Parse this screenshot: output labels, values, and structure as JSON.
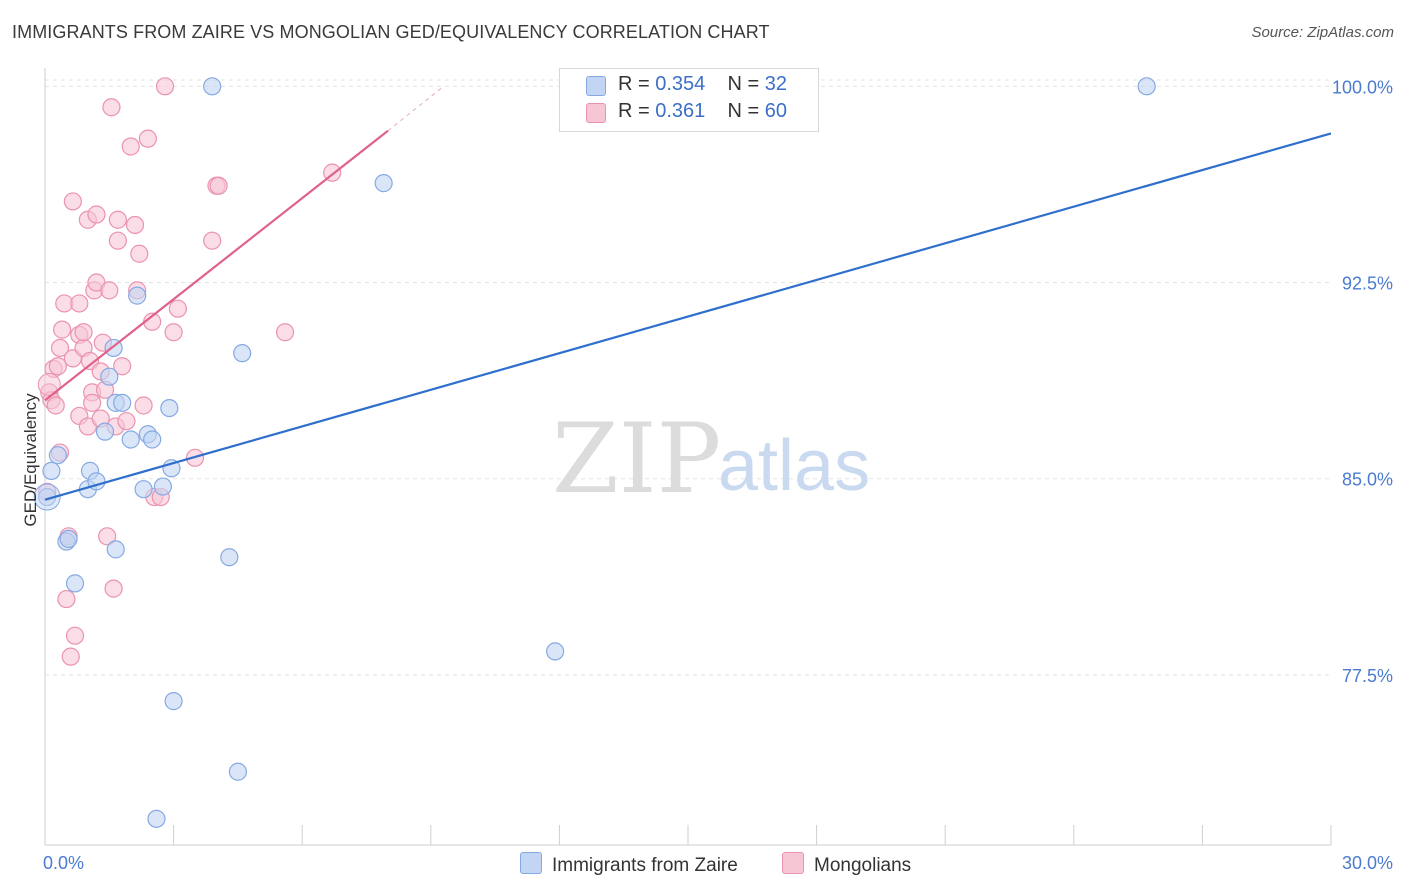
{
  "title": "IMMIGRANTS FROM ZAIRE VS MONGOLIAN GED/EQUIVALENCY CORRELATION CHART",
  "source": "Source: ZipAtlas.com",
  "watermark": {
    "zip": "ZIP",
    "atlas": "atlas"
  },
  "colors": {
    "blue_fill": "#c2d6f4",
    "blue_stroke": "#86a9e3",
    "blue_line": "#2f6fcc",
    "pink_fill": "#f7c6d5",
    "pink_stroke": "#eb93ae",
    "pink_line": "#e0628a",
    "grid": "#e3e3e3",
    "axis_text": "#4a7bd0"
  },
  "legend": {
    "rows": [
      {
        "r_label": "R =",
        "r_value": "0.354",
        "n_label": "N =",
        "n_value": "32"
      },
      {
        "r_label": "R =",
        "r_value": "0.361",
        "n_label": "N =",
        "n_value": "60"
      }
    ]
  },
  "bottom_legend": {
    "series1": "Immigrants from Zaire",
    "series2": "Mongolians"
  },
  "chart_data": {
    "type": "scatter",
    "title": "IMMIGRANTS FROM ZAIRE VS MONGOLIAN GED/EQUIVALENCY CORRELATION CHART",
    "xlabel": "",
    "ylabel": "GED/Equivalency",
    "xlim": [
      0,
      30
    ],
    "ylim": [
      71,
      100.7
    ],
    "x_tick_labels": [
      "0.0%",
      "30.0%"
    ],
    "y_ticks": [
      77.5,
      85.0,
      92.5,
      100.0
    ],
    "y_tick_labels": [
      "77.5%",
      "85.0%",
      "92.5%",
      "100.0%"
    ],
    "grid": true,
    "series": [
      {
        "name": "Immigrants from Zaire",
        "color": "#86a9e3",
        "trend": {
          "x": [
            0,
            30
          ],
          "y": [
            84.2,
            98.2
          ]
        },
        "points": [
          [
            0.05,
            84.3
          ],
          [
            0.15,
            85.3
          ],
          [
            0.3,
            85.9
          ],
          [
            0.5,
            82.6
          ],
          [
            0.55,
            82.7
          ],
          [
            0.7,
            81.0
          ],
          [
            1.0,
            84.6
          ],
          [
            1.05,
            85.3
          ],
          [
            1.2,
            84.9
          ],
          [
            1.5,
            88.9
          ],
          [
            1.4,
            86.8
          ],
          [
            1.65,
            87.9
          ],
          [
            1.6,
            90.0
          ],
          [
            1.65,
            82.3
          ],
          [
            1.8,
            87.9
          ],
          [
            2.0,
            86.5
          ],
          [
            2.15,
            92.0
          ],
          [
            2.3,
            84.6
          ],
          [
            2.4,
            86.7
          ],
          [
            2.5,
            86.5
          ],
          [
            2.75,
            84.7
          ],
          [
            2.9,
            87.7
          ],
          [
            2.95,
            85.4
          ],
          [
            3.0,
            76.5
          ],
          [
            2.6,
            72.0
          ],
          [
            3.9,
            100.0
          ],
          [
            4.3,
            82.0
          ],
          [
            4.5,
            73.8
          ],
          [
            4.6,
            89.8
          ],
          [
            7.9,
            96.3
          ],
          [
            11.9,
            78.4
          ],
          [
            25.7,
            100.0
          ]
        ]
      },
      {
        "name": "Mongolians",
        "color": "#eb93ae",
        "trend": {
          "x": [
            0,
            8.0
          ],
          "y": [
            88.0,
            98.3
          ]
        },
        "trend_dashed": {
          "x": [
            8.0,
            9.3
          ],
          "y": [
            98.3,
            100.0
          ]
        },
        "points": [
          [
            0.05,
            84.5
          ],
          [
            0.1,
            88.3
          ],
          [
            0.15,
            88.0
          ],
          [
            0.2,
            89.2
          ],
          [
            0.25,
            87.8
          ],
          [
            0.3,
            89.3
          ],
          [
            0.35,
            90.0
          ],
          [
            0.35,
            86.0
          ],
          [
            0.4,
            90.7
          ],
          [
            0.45,
            91.7
          ],
          [
            0.5,
            80.4
          ],
          [
            0.55,
            82.8
          ],
          [
            0.6,
            78.2
          ],
          [
            0.65,
            89.6
          ],
          [
            0.65,
            95.6
          ],
          [
            0.7,
            79.0
          ],
          [
            0.8,
            87.4
          ],
          [
            0.8,
            90.5
          ],
          [
            0.8,
            91.7
          ],
          [
            0.9,
            90.0
          ],
          [
            0.9,
            90.6
          ],
          [
            1.0,
            87.0
          ],
          [
            1.0,
            94.9
          ],
          [
            1.05,
            89.5
          ],
          [
            1.1,
            88.3
          ],
          [
            1.1,
            87.9
          ],
          [
            1.15,
            92.2
          ],
          [
            1.2,
            95.1
          ],
          [
            1.2,
            92.5
          ],
          [
            1.3,
            87.3
          ],
          [
            1.3,
            89.1
          ],
          [
            1.35,
            90.2
          ],
          [
            1.4,
            88.4
          ],
          [
            1.45,
            82.8
          ],
          [
            1.5,
            92.2
          ],
          [
            1.55,
            99.2
          ],
          [
            1.6,
            80.8
          ],
          [
            1.65,
            87.0
          ],
          [
            1.7,
            94.9
          ],
          [
            1.7,
            94.1
          ],
          [
            1.8,
            89.3
          ],
          [
            1.9,
            87.2
          ],
          [
            2.0,
            97.7
          ],
          [
            2.1,
            94.7
          ],
          [
            2.2,
            93.6
          ],
          [
            2.3,
            87.8
          ],
          [
            2.15,
            92.2
          ],
          [
            2.4,
            98.0
          ],
          [
            2.5,
            91.0
          ],
          [
            2.55,
            84.3
          ],
          [
            2.7,
            84.3
          ],
          [
            2.8,
            100.0
          ],
          [
            3.0,
            90.6
          ],
          [
            3.1,
            91.5
          ],
          [
            3.5,
            85.8
          ],
          [
            3.9,
            94.1
          ],
          [
            4.0,
            96.2
          ],
          [
            4.05,
            96.2
          ],
          [
            5.6,
            90.6
          ],
          [
            6.7,
            96.7
          ]
        ]
      }
    ]
  }
}
